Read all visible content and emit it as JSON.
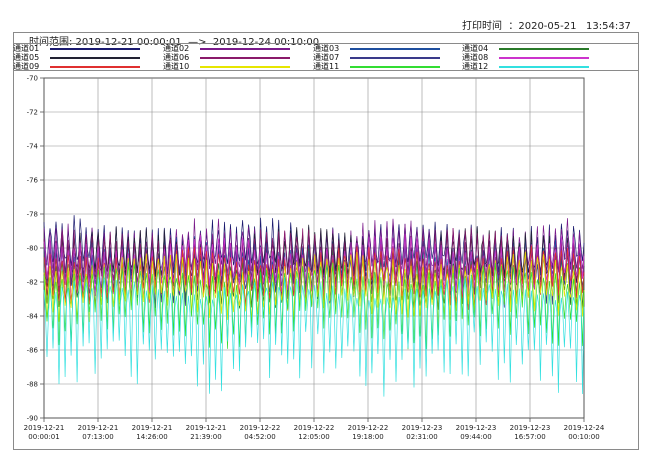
{
  "header": {
    "print_time": "打印时间  ：2020-05-21   13:54:37",
    "range": "时间范围: 2019-12-21 00:00:01  —>  2019-12-24 00:10:00"
  },
  "colors": {
    "background": "#ffffff",
    "grid": "#909090",
    "axis": "#555555"
  },
  "chart_data": {
    "type": "line",
    "title": "",
    "xlabel": "",
    "ylabel": "",
    "ylim": [
      -90,
      -70
    ],
    "yticks": [
      -70,
      -72,
      -74,
      -76,
      -78,
      -80,
      -82,
      -84,
      -86,
      -88,
      -90
    ],
    "ytick_labels": [
      "-70",
      "-72",
      "-74",
      "-76",
      "-78",
      "-80",
      "-82",
      "-84",
      "-86",
      "-88",
      "-90"
    ],
    "xtick_labels": [
      [
        "2019-12-21",
        "00:00:01"
      ],
      [
        "2019-12-21",
        "07:13:00"
      ],
      [
        "2019-12-21",
        "14:26:00"
      ],
      [
        "2019-12-21",
        "21:39:00"
      ],
      [
        "2019-12-22",
        "04:52:00"
      ],
      [
        "2019-12-22",
        "12:05:00"
      ],
      [
        "2019-12-22",
        "19:18:00"
      ],
      [
        "2019-12-23",
        "02:31:00"
      ],
      [
        "2019-12-23",
        "09:44:00"
      ],
      [
        "2019-12-23",
        "16:57:00"
      ],
      [
        "2019-12-24",
        "00:10:00"
      ]
    ],
    "grid": true,
    "legend_placement": "top",
    "series": [
      {
        "name": "通道01",
        "color": "#1a1a6e",
        "base": -80.3,
        "amp": 1.6,
        "dip": 0.8,
        "seed": 1
      },
      {
        "name": "通道02",
        "color": "#7a1a8a",
        "base": -80.6,
        "amp": 1.7,
        "dip": 0.9,
        "seed": 2
      },
      {
        "name": "通道03",
        "color": "#1f4f9f",
        "base": -81.3,
        "amp": 1.4,
        "dip": 1.0,
        "seed": 3
      },
      {
        "name": "通道04",
        "color": "#2a7a2a",
        "base": -81.8,
        "amp": 1.3,
        "dip": 1.1,
        "seed": 4
      },
      {
        "name": "通道05",
        "color": "#222233",
        "base": -80.8,
        "amp": 1.5,
        "dip": 0.9,
        "seed": 5
      },
      {
        "name": "通道06",
        "color": "#8a1a6a",
        "base": -81.0,
        "amp": 1.6,
        "dip": 1.0,
        "seed": 6
      },
      {
        "name": "通道07",
        "color": "#3a3a8a",
        "base": -81.5,
        "amp": 1.3,
        "dip": 1.2,
        "seed": 7
      },
      {
        "name": "通道08",
        "color": "#cc33cc",
        "base": -81.2,
        "amp": 1.4,
        "dip": 1.1,
        "seed": 8
      },
      {
        "name": "通道09",
        "color": "#e03030",
        "base": -81.6,
        "amp": 1.2,
        "dip": 1.2,
        "seed": 9
      },
      {
        "name": "通道10",
        "color": "#e6e600",
        "base": -82.0,
        "amp": 1.2,
        "dip": 1.6,
        "seed": 10
      },
      {
        "name": "通道11",
        "color": "#33dd33",
        "base": -82.6,
        "amp": 1.2,
        "dip": 2.2,
        "seed": 11
      },
      {
        "name": "通道12",
        "color": "#33e0e0",
        "base": -83.4,
        "amp": 1.1,
        "dip": 3.6,
        "seed": 12
      }
    ]
  }
}
